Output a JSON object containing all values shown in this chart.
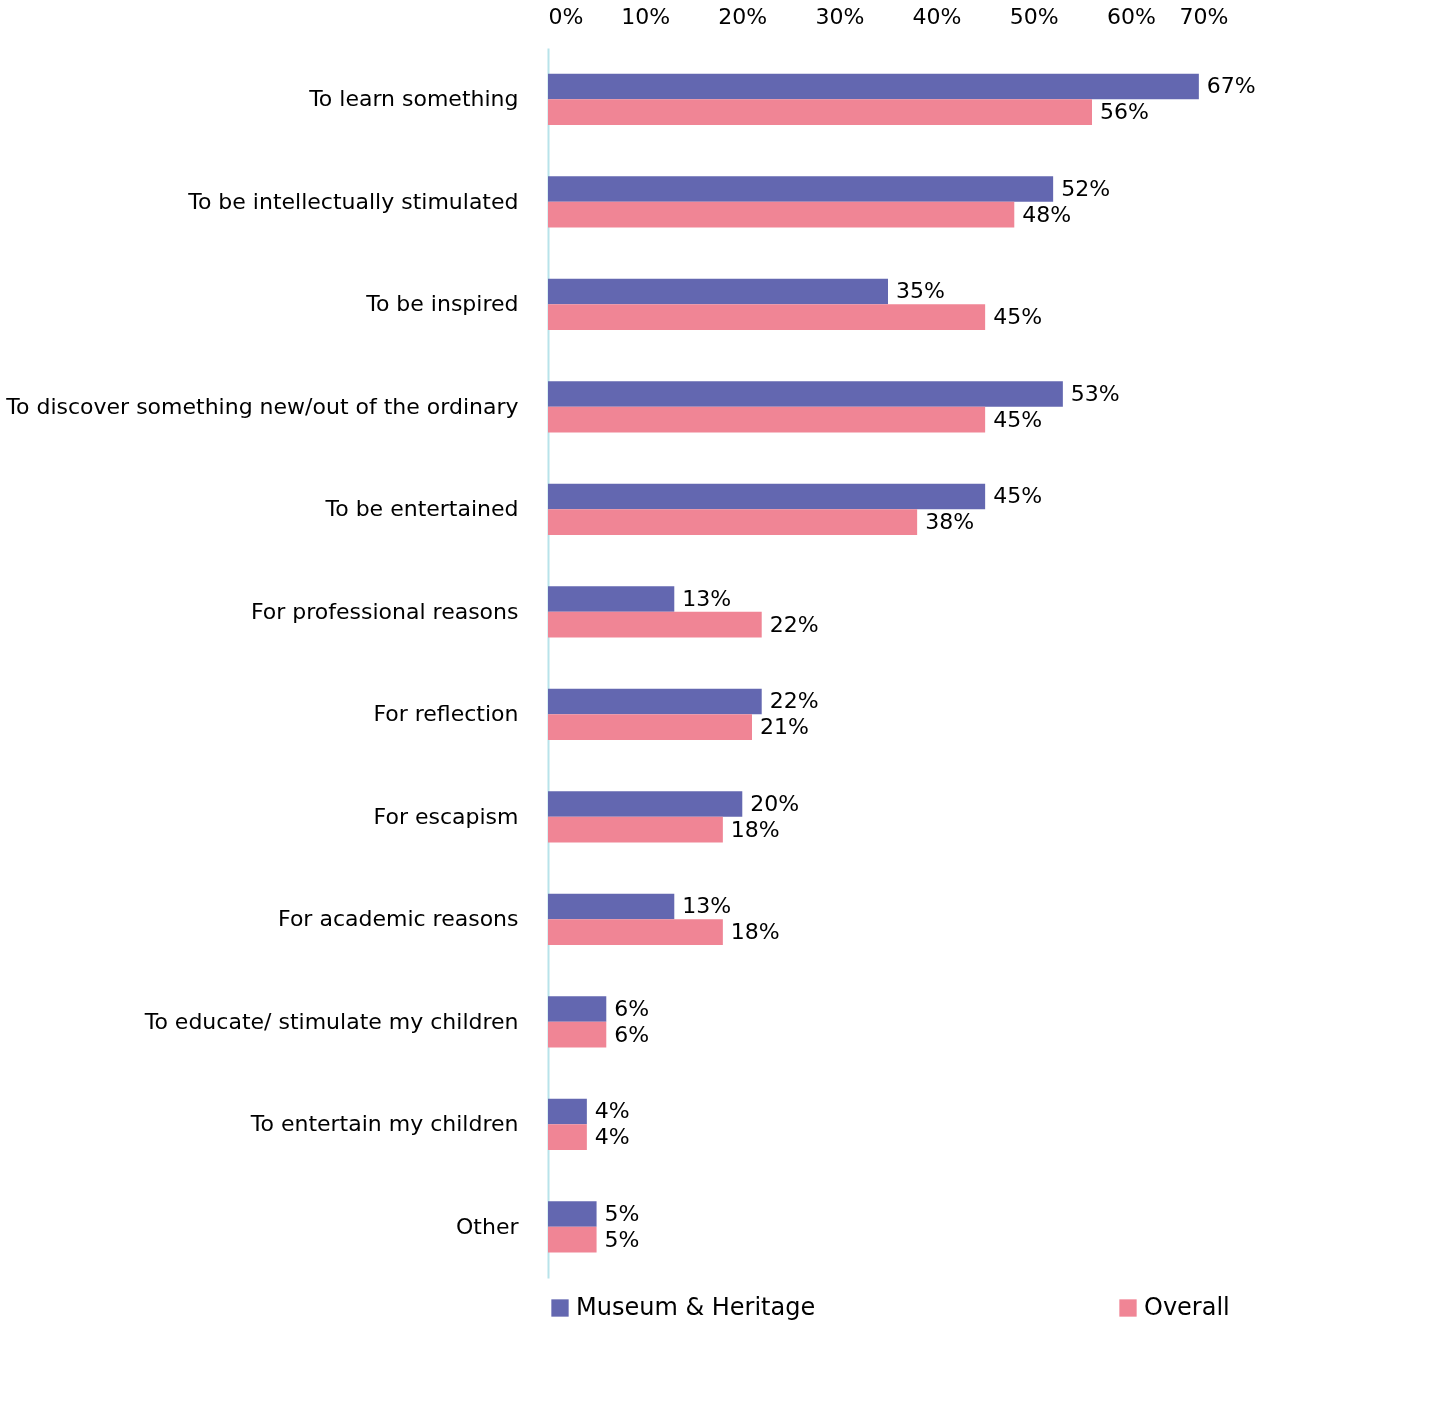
{
  "chart_data": {
    "type": "bar",
    "orientation": "horizontal",
    "categories": [
      "To learn something",
      "To be intellectually stimulated",
      "To be inspired",
      "To discover something new/out of the ordinary",
      "To be entertained",
      "For professional reasons",
      "For reflection",
      "For escapism",
      "For academic reasons",
      "To educate/ stimulate my children",
      "To entertain my children",
      "Other"
    ],
    "series": [
      {
        "name": "Museum & Heritage",
        "color": "#6367b0",
        "values": [
          67,
          52,
          35,
          53,
          45,
          13,
          22,
          20,
          13,
          6,
          4,
          5
        ],
        "value_labels": [
          "67%",
          "52%",
          "35%",
          "53%",
          "45%",
          "13%",
          "22%",
          "20%",
          "13%",
          "6%",
          "4%",
          "5%"
        ]
      },
      {
        "name": "Overall",
        "color": "#f08595",
        "values": [
          56,
          48,
          45,
          45,
          38,
          22,
          21,
          18,
          18,
          6,
          4,
          5
        ],
        "value_labels": [
          "56%",
          "48%",
          "45%",
          "45%",
          "38%",
          "22%",
          "21%",
          "18%",
          "18%",
          "6%",
          "4%",
          "5%"
        ]
      }
    ],
    "xlim": [
      0,
      70
    ],
    "xticks": [
      {
        "value": 0,
        "label": "0%"
      },
      {
        "value": 10,
        "label": "10%"
      },
      {
        "value": 20,
        "label": "20%"
      },
      {
        "value": 30,
        "label": "30%"
      },
      {
        "value": 40,
        "label": "40%"
      },
      {
        "value": 50,
        "label": "50%"
      },
      {
        "value": 60,
        "label": "60%"
      },
      {
        "value": 70,
        "label": "70%"
      }
    ],
    "grid": false,
    "legend": "bottom"
  }
}
